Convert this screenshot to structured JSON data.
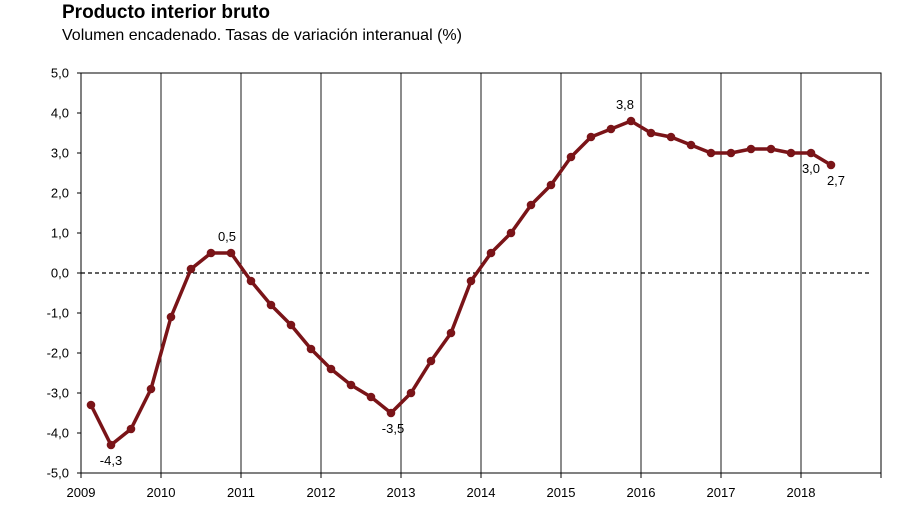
{
  "title": "Producto interior bruto",
  "subtitle": "Volumen encadenado. Tasas de variación interanual (%)",
  "chart_data": {
    "type": "line",
    "ylim": [
      -5.0,
      5.0
    ],
    "y_ticks": [
      "5,0",
      "4,0",
      "3,0",
      "2,0",
      "1,0",
      "0,0",
      "-1,0",
      "-2,0",
      "-3,0",
      "-4,0",
      "-5,0"
    ],
    "x_ticks": [
      "2009",
      "2010",
      "2011",
      "2012",
      "2013",
      "2014",
      "2015",
      "2016",
      "2017",
      "2018"
    ],
    "grid": "vertical lines at year boundaries",
    "zero_line": "dashed",
    "series_color": "#7a1418",
    "series": [
      {
        "x": [
          "2009-Q1",
          "2009-Q2",
          "2009-Q3",
          "2009-Q4",
          "2010-Q1",
          "2010-Q2",
          "2010-Q3",
          "2010-Q4",
          "2011-Q1",
          "2011-Q2",
          "2011-Q3",
          "2011-Q4",
          "2012-Q1",
          "2012-Q2",
          "2012-Q3",
          "2012-Q4",
          "2013-Q1",
          "2013-Q2",
          "2013-Q3",
          "2013-Q4",
          "2014-Q1",
          "2014-Q2",
          "2014-Q3",
          "2014-Q4",
          "2015-Q1",
          "2015-Q2",
          "2015-Q3",
          "2015-Q4",
          "2016-Q1",
          "2016-Q2",
          "2016-Q3",
          "2016-Q4",
          "2017-Q1",
          "2017-Q2",
          "2017-Q3",
          "2017-Q4",
          "2018-Q1",
          "2018-Q2"
        ],
        "values": [
          -3.3,
          -4.3,
          -3.9,
          -2.9,
          -1.1,
          0.1,
          0.5,
          0.5,
          -0.2,
          -0.8,
          -1.3,
          -1.9,
          -2.4,
          -2.8,
          -3.1,
          -3.5,
          -3.0,
          -2.2,
          -1.5,
          -0.2,
          0.5,
          1.0,
          1.7,
          2.2,
          2.9,
          3.4,
          3.6,
          3.8,
          3.5,
          3.4,
          3.2,
          3.0,
          3.0,
          3.1,
          3.1,
          3.0,
          3.0,
          2.7
        ]
      }
    ],
    "data_labels": [
      {
        "index": 1,
        "text": "-4,3"
      },
      {
        "index": 7,
        "text": "0,5"
      },
      {
        "index": 15,
        "text": "-3,5"
      },
      {
        "index": 27,
        "text": "3,8"
      },
      {
        "index": 36,
        "text": "3,0"
      },
      {
        "index": 37,
        "text": "2,7"
      }
    ]
  }
}
